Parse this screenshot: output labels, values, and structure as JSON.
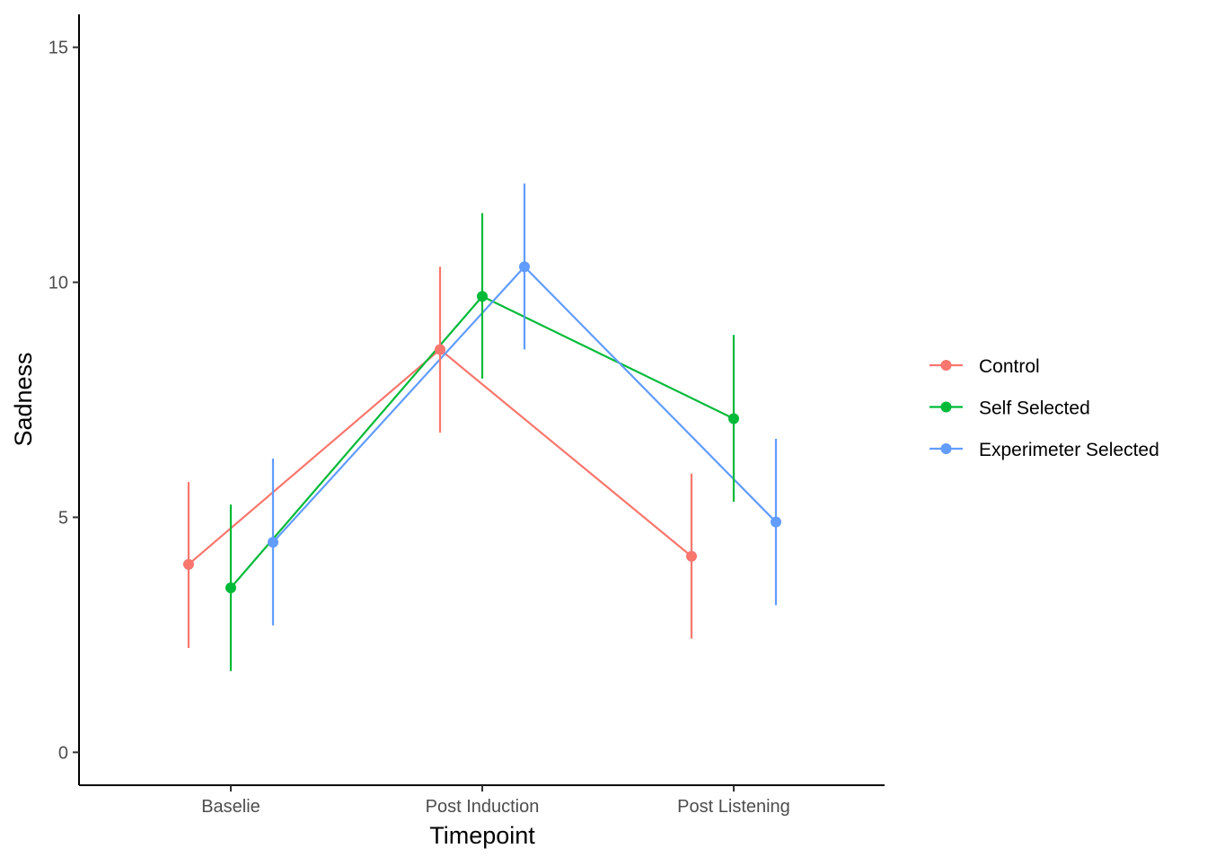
{
  "chart_data": {
    "type": "line",
    "title": "",
    "xlabel": "Timepoint",
    "ylabel": "Sadness",
    "categories": [
      "Baselie",
      "Post Induction",
      "Post Listening"
    ],
    "ylim": [
      -0.7,
      15.7
    ],
    "yticks": [
      0,
      5,
      10,
      15
    ],
    "grid": false,
    "legend_position": "right",
    "error_bars": true,
    "series": [
      {
        "name": "Control",
        "color": "#F8766D",
        "values": [
          4.0,
          8.57,
          4.17
        ],
        "lower": [
          2.22,
          6.8,
          2.42
        ],
        "upper": [
          5.75,
          10.33,
          5.93
        ]
      },
      {
        "name": "Self Selected",
        "color": "#00BA38",
        "values": [
          3.5,
          9.7,
          7.1
        ],
        "lower": [
          1.73,
          7.95,
          5.33
        ],
        "upper": [
          5.27,
          11.47,
          8.88
        ]
      },
      {
        "name": "Experimeter Selected",
        "color": "#619CFF",
        "values": [
          4.47,
          10.33,
          4.9
        ],
        "lower": [
          2.7,
          8.57,
          3.13
        ],
        "upper": [
          6.25,
          12.1,
          6.67
        ]
      }
    ]
  }
}
